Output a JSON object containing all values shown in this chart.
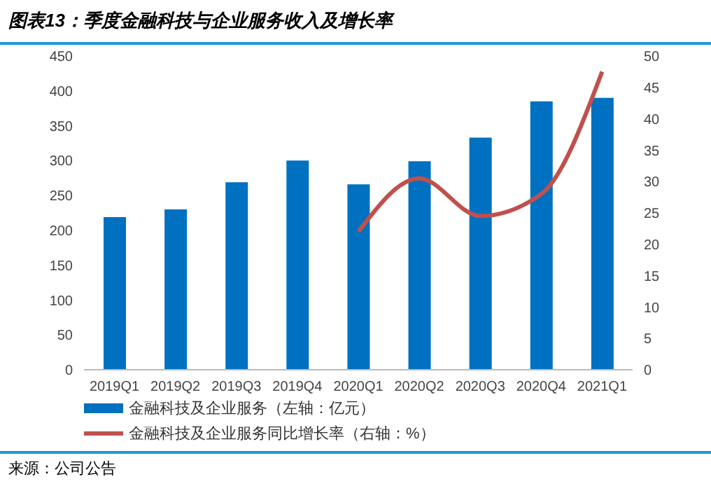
{
  "chart_data": {
    "type": "bar",
    "title": "图表13：季度金融科技与企业服务收入及增长率",
    "annotations": [
      "来源：公司公告"
    ],
    "categories": [
      "2019Q1",
      "2019Q2",
      "2019Q3",
      "2019Q4",
      "2020Q1",
      "2020Q2",
      "2020Q3",
      "2020Q4",
      "2021Q1"
    ],
    "series": [
      {
        "name": "金融科技及企业服务（左轴：亿元）",
        "color": "#0070c0",
        "values": [
          219,
          230,
          269,
          300,
          266,
          299,
          333,
          385,
          390
        ]
      },
      {
        "name": "金融科技及企业服务同比增长率（右轴：%）",
        "type": "line",
        "axis": "y2",
        "color": "#c0504d",
        "values": [
          null,
          null,
          null,
          null,
          22,
          30.5,
          24.5,
          28,
          47.5
        ]
      }
    ],
    "ylim": [
      0,
      450
    ],
    "yticks": [
      0,
      50,
      100,
      150,
      200,
      250,
      300,
      350,
      400,
      450
    ],
    "y2lim": [
      0,
      50
    ],
    "y2ticks": [
      0,
      5,
      10,
      15,
      20,
      25,
      30,
      35,
      40,
      45,
      50
    ],
    "legend": "bottom",
    "marker": "none",
    "grid": false
  }
}
